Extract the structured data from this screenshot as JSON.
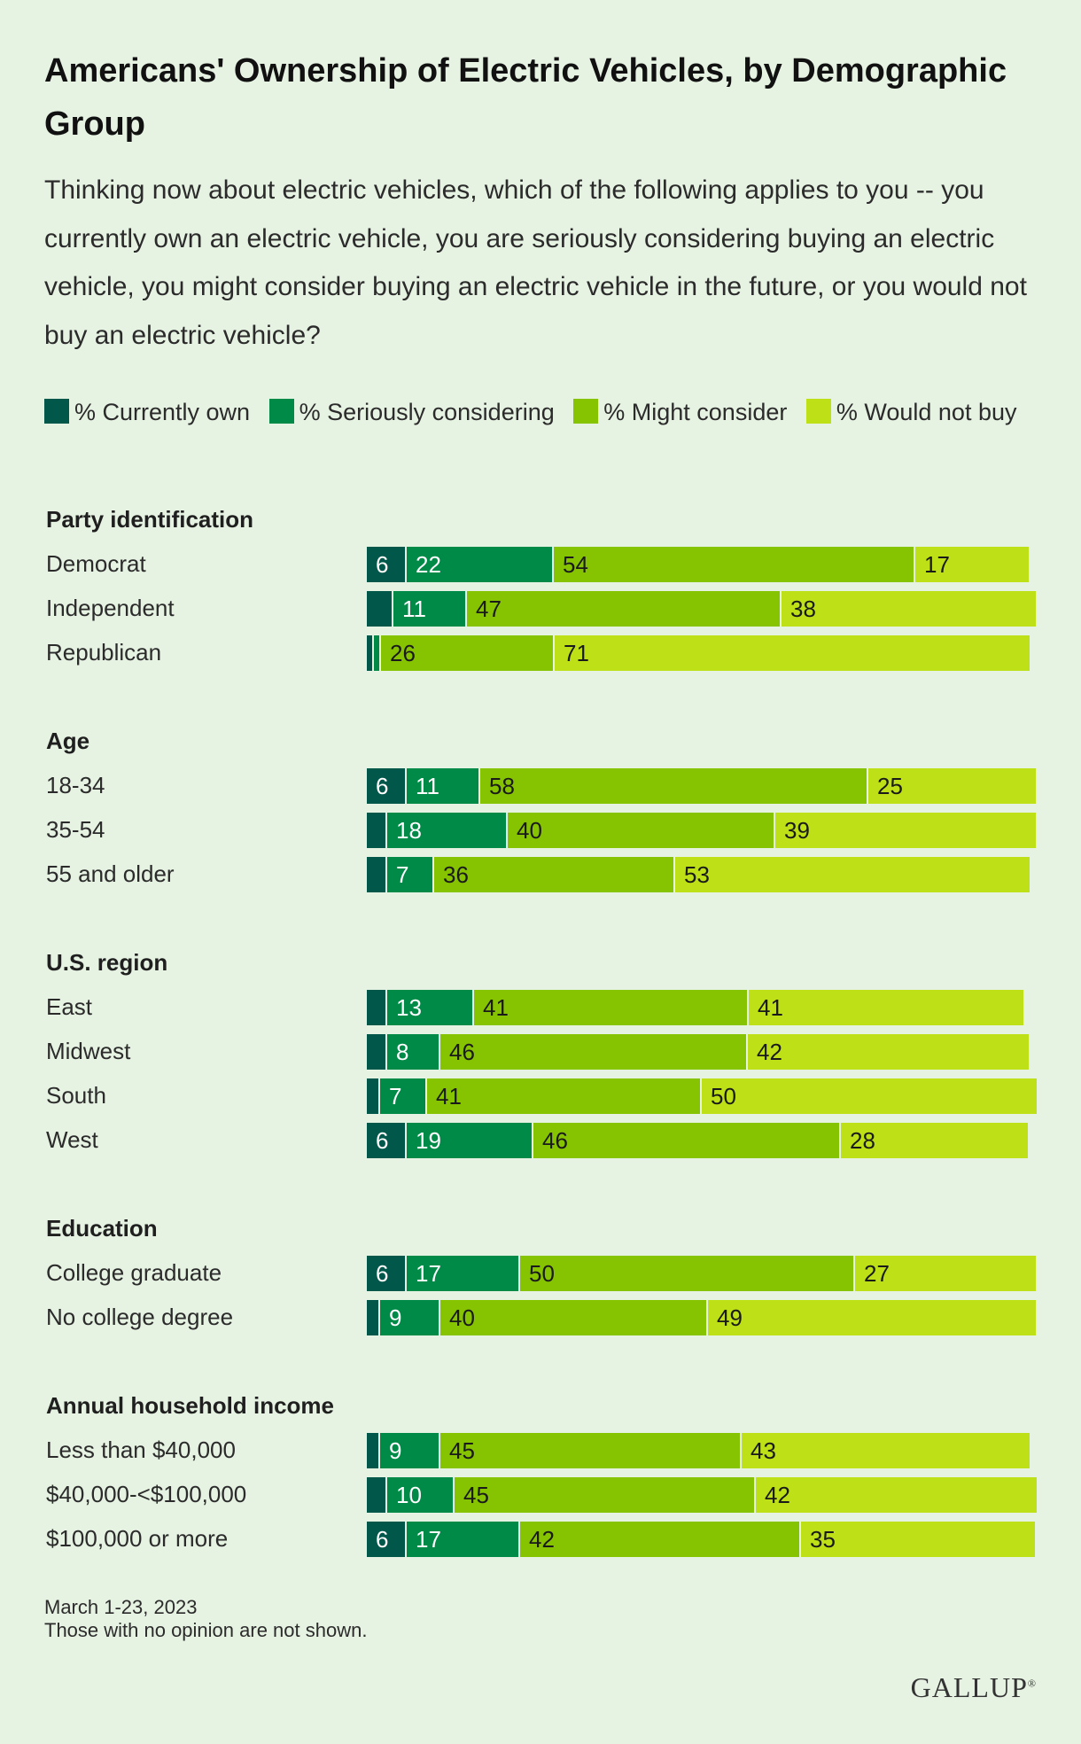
{
  "header": {
    "title": "Americans' Ownership of Electric Vehicles, by Demographic Group",
    "subtitle": "Thinking now about electric vehicles, which of the following applies to you -- you currently own an electric vehicle, you are seriously considering buying an electric vehicle, you might consider buying an electric vehicle in the future, or you would not buy an electric vehicle?"
  },
  "colors": {
    "background": "#e6f2e2",
    "currently_own": "#00574a",
    "seriously_considering": "#008a48",
    "might_consider": "#86c301",
    "would_not_buy": "#bde016"
  },
  "chart_data": {
    "type": "bar",
    "orientation": "horizontal",
    "stacked": true,
    "xlim": [
      0,
      100
    ],
    "legend_position": "top",
    "series": [
      {
        "name": "% Currently own"
      },
      {
        "name": "% Seriously considering"
      },
      {
        "name": "% Might consider"
      },
      {
        "name": "% Would not buy"
      }
    ],
    "groups": [
      {
        "name": "Party identification",
        "rows": [
          {
            "label": "Democrat",
            "values": [
              6,
              22,
              54,
              17
            ]
          },
          {
            "label": "Independent",
            "values": [
              4,
              11,
              47,
              38
            ]
          },
          {
            "label": "Republican",
            "values": [
              1,
              1,
              26,
              71
            ]
          }
        ]
      },
      {
        "name": "Age",
        "rows": [
          {
            "label": "18-34",
            "values": [
              6,
              11,
              58,
              25
            ]
          },
          {
            "label": "35-54",
            "values": [
              3,
              18,
              40,
              39
            ]
          },
          {
            "label": "55 and older",
            "values": [
              3,
              7,
              36,
              53
            ]
          }
        ]
      },
      {
        "name": "U.S. region",
        "rows": [
          {
            "label": "East",
            "values": [
              3,
              13,
              41,
              41
            ]
          },
          {
            "label": "Midwest",
            "values": [
              3,
              8,
              46,
              42
            ]
          },
          {
            "label": "South",
            "values": [
              2,
              7,
              41,
              50
            ]
          },
          {
            "label": "West",
            "values": [
              6,
              19,
              46,
              28
            ]
          }
        ]
      },
      {
        "name": "Education",
        "rows": [
          {
            "label": "College graduate",
            "values": [
              6,
              17,
              50,
              27
            ]
          },
          {
            "label": "No college degree",
            "values": [
              2,
              9,
              40,
              49
            ]
          }
        ]
      },
      {
        "name": "Annual household income",
        "rows": [
          {
            "label": "Less than $40,000",
            "values": [
              2,
              9,
              45,
              43
            ]
          },
          {
            "label": "$40,000-<$100,000",
            "values": [
              3,
              10,
              45,
              42
            ]
          },
          {
            "label": "$100,000 or more",
            "values": [
              6,
              17,
              42,
              35
            ]
          }
        ]
      }
    ]
  },
  "footer": {
    "date": "March 1-23, 2023",
    "note": "Those with no opinion are not shown."
  },
  "brand": {
    "logo_text": "GALLUP"
  }
}
